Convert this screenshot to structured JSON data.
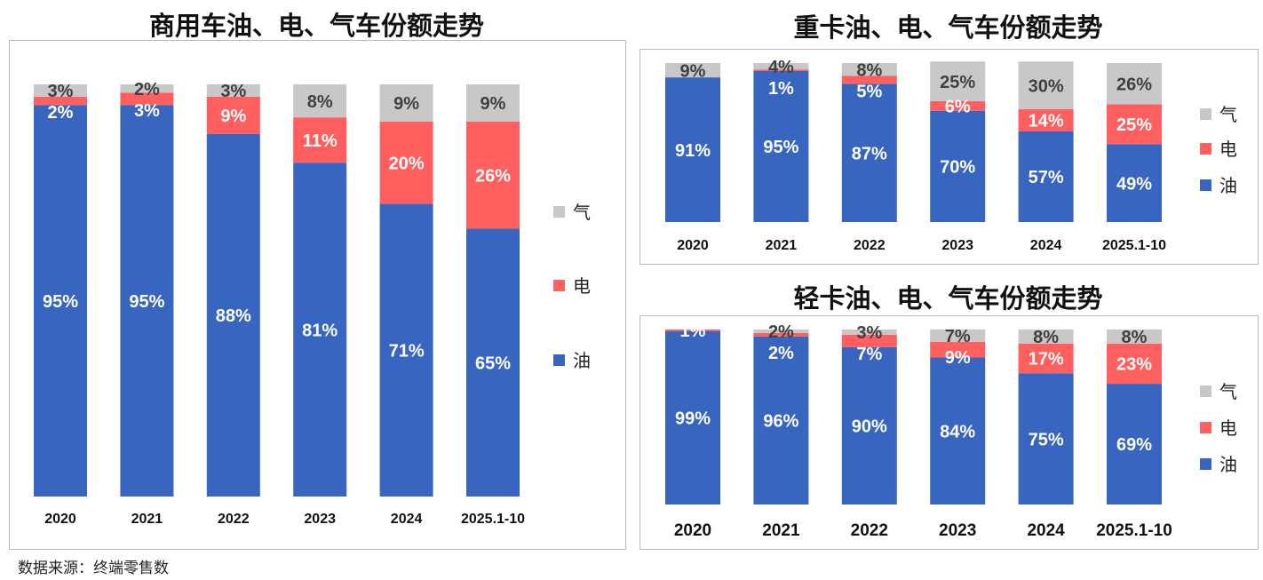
{
  "colors": {
    "油": "#3865C0",
    "电": "#FF5F5F",
    "气": "#C8C8C8"
  },
  "legend": [
    "气",
    "电",
    "油"
  ],
  "footnote": "数据来源：终端零售数",
  "chart_data": [
    {
      "type": "bar",
      "stacked": true,
      "title": "商用车油、电、气车份额走势",
      "categories": [
        "2020",
        "2021",
        "2022",
        "2023",
        "2024",
        "2025.1-10"
      ],
      "ylim": [
        0,
        100
      ],
      "legend_position": "right",
      "series": [
        {
          "name": "油",
          "values": [
            95,
            95,
            88,
            81,
            71,
            65
          ]
        },
        {
          "name": "电",
          "values": [
            2,
            3,
            9,
            11,
            20,
            26
          ]
        },
        {
          "name": "气",
          "values": [
            3,
            2,
            3,
            8,
            9,
            9
          ]
        }
      ]
    },
    {
      "type": "bar",
      "stacked": true,
      "title": "重卡油、电、气车份额走势",
      "categories": [
        "2020",
        "2021",
        "2022",
        "2023",
        "2024",
        "2025.1-10"
      ],
      "ylim": [
        0,
        100
      ],
      "legend_position": "right",
      "series": [
        {
          "name": "油",
          "values": [
            91,
            95,
            87,
            70,
            57,
            49
          ]
        },
        {
          "name": "电",
          "values": [
            0,
            1,
            5,
            6,
            14,
            25
          ]
        },
        {
          "name": "气",
          "values": [
            9,
            4,
            8,
            25,
            30,
            26
          ]
        }
      ]
    },
    {
      "type": "bar",
      "stacked": true,
      "title": "轻卡油、电、气车份额走势",
      "categories": [
        "2020",
        "2021",
        "2022",
        "2023",
        "2024",
        "2025.1-10"
      ],
      "ylim": [
        0,
        100
      ],
      "legend_position": "right",
      "series": [
        {
          "name": "油",
          "values": [
            99,
            96,
            90,
            84,
            75,
            69
          ]
        },
        {
          "name": "电",
          "values": [
            1,
            2,
            7,
            9,
            17,
            23
          ]
        },
        {
          "name": "气",
          "values": [
            0,
            2,
            3,
            7,
            8,
            8
          ]
        }
      ]
    }
  ]
}
